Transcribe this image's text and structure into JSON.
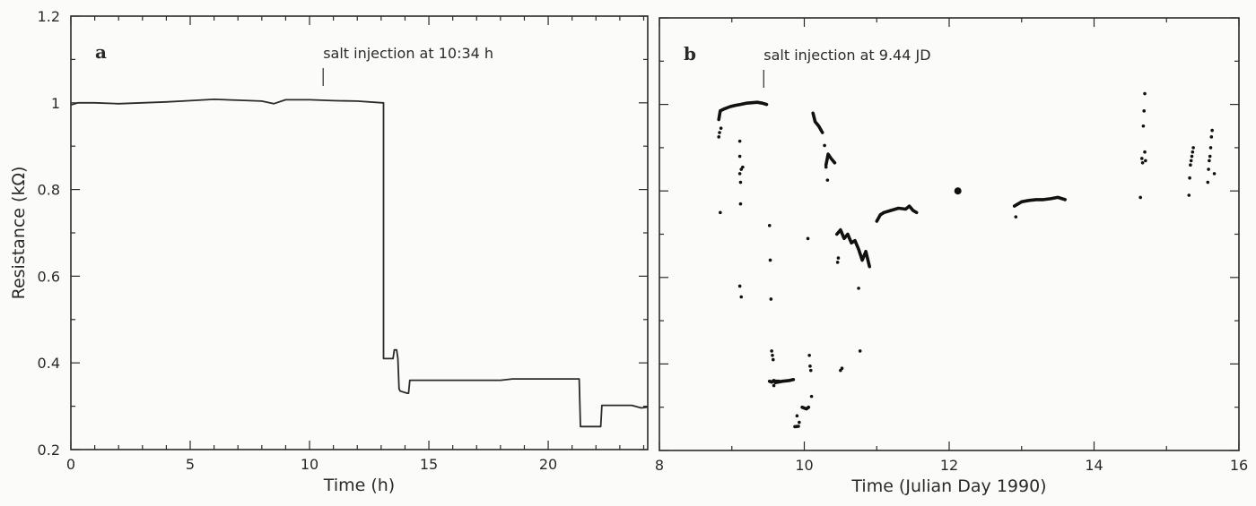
{
  "figure": {
    "ylabel": "Resistance (kΩ)",
    "line_color": "#2a2a2a",
    "background": "#fbfbf9"
  },
  "chart_data": [
    {
      "panel": "a",
      "type": "line",
      "title": "",
      "panel_label": "a",
      "annotation": {
        "text": "salt injection at 10:34 h",
        "x": 10.57
      },
      "xlabel": "Time (h)",
      "ylabel": "Resistance (kΩ)",
      "xlim": [
        0,
        24.17
      ],
      "ylim": [
        0.2,
        1.2
      ],
      "xticks": [
        0,
        5,
        10,
        15,
        20
      ],
      "xtick_labels": [
        "0",
        "5",
        "10",
        "15",
        "20"
      ],
      "x_minor_step": 1,
      "yticks": [
        0.2,
        0.4,
        0.6,
        0.8,
        1.0,
        1.2
      ],
      "ytick_labels": [
        "0.2",
        "0.4",
        "0.6",
        "0.8",
        "1",
        "1.2"
      ],
      "y_minor_step": 0.1,
      "grid": false,
      "series": [
        {
          "name": "resistance",
          "x": [
            0,
            0.3,
            1,
            2,
            3,
            4,
            5,
            6,
            7,
            8,
            8.5,
            9,
            10,
            11,
            12,
            13.05,
            13.1,
            13.1,
            13.5,
            13.55,
            13.65,
            13.7,
            13.75,
            13.8,
            14.1,
            14.15,
            14.2,
            16,
            18,
            18.5,
            20,
            21.3,
            21.35,
            22.2,
            22.25,
            23.5,
            23.9,
            24.17
          ],
          "y": [
            0.995,
            1.0,
            1.0,
            0.998,
            1.0,
            1.002,
            1.005,
            1.008,
            1.006,
            1.004,
            0.998,
            1.007,
            1.007,
            1.005,
            1.004,
            1.0,
            1.0,
            0.41,
            0.41,
            0.43,
            0.43,
            0.41,
            0.34,
            0.335,
            0.33,
            0.33,
            0.36,
            0.36,
            0.36,
            0.363,
            0.363,
            0.363,
            0.253,
            0.253,
            0.302,
            0.302,
            0.296,
            0.298
          ]
        }
      ]
    },
    {
      "panel": "b",
      "type": "scatter",
      "title": "",
      "panel_label": "b",
      "annotation": {
        "text": "salt injection at 9.44 JD",
        "x": 9.44
      },
      "xlabel": "Time (Julian Day 1990)",
      "ylabel": "",
      "xlim": [
        8,
        16
      ],
      "ylim": [
        0.2,
        1.2
      ],
      "xticks": [
        8,
        10,
        12,
        14,
        16
      ],
      "xtick_labels": [
        "8",
        "10",
        "12",
        "14",
        "16"
      ],
      "x_minor_step": 1,
      "yticks": [
        0.2,
        0.4,
        0.6,
        0.8,
        1.0,
        1.2
      ],
      "ytick_labels": [
        "",
        "",
        "",
        "",
        "",
        ""
      ],
      "y_minor_step": 0.1,
      "grid": false,
      "segments": [
        {
          "x": [
            8.82,
            8.84,
            8.9,
            8.98,
            9.05,
            9.12,
            9.2,
            9.28,
            9.35,
            9.42,
            9.48
          ],
          "y": [
            0.965,
            0.985,
            0.99,
            0.995,
            0.998,
            1.0,
            1.003,
            1.004,
            1.005,
            1.003,
            1.0
          ]
        },
        {
          "x": [
            9.52,
            9.55,
            9.58,
            9.6,
            9.62,
            9.65
          ],
          "y": [
            0.36,
            0.358,
            0.362,
            0.36,
            0.36,
            0.36
          ]
        },
        {
          "x": [
            9.6,
            9.7,
            9.8,
            9.85
          ],
          "y": [
            0.357,
            0.36,
            0.362,
            0.364
          ]
        },
        {
          "x": [
            10.12,
            10.15,
            10.2,
            10.25
          ],
          "y": [
            0.98,
            0.96,
            0.95,
            0.935
          ]
        },
        {
          "x": [
            10.3,
            10.33,
            10.37,
            10.42
          ],
          "y": [
            0.86,
            0.885,
            0.875,
            0.865
          ]
        },
        {
          "x": [
            10.45,
            10.5,
            10.55,
            10.6,
            10.65,
            10.7,
            10.75,
            10.8,
            10.85,
            10.9
          ],
          "y": [
            0.7,
            0.71,
            0.69,
            0.7,
            0.68,
            0.685,
            0.665,
            0.64,
            0.66,
            0.625
          ]
        },
        {
          "x": [
            11.0,
            11.05,
            11.1,
            11.2,
            11.3,
            11.4,
            11.45,
            11.5,
            11.55
          ],
          "y": [
            0.73,
            0.745,
            0.75,
            0.755,
            0.76,
            0.758,
            0.765,
            0.755,
            0.75
          ]
        },
        {
          "x": [
            12.9,
            13.0,
            13.1,
            13.2,
            13.3,
            13.4,
            13.5,
            13.6
          ],
          "y": [
            0.765,
            0.775,
            0.778,
            0.78,
            0.78,
            0.782,
            0.785,
            0.78
          ]
        },
        {
          "x": [
            9.97,
            10.0,
            10.03,
            10.06
          ],
          "y": [
            0.3,
            0.298,
            0.296,
            0.3
          ]
        },
        {
          "x": [
            9.87,
            9.92
          ],
          "y": [
            0.255,
            0.256
          ]
        }
      ],
      "points": [
        {
          "x": [
            8.82,
            8.83,
            8.84,
            8.85,
            9.11,
            9.11,
            9.11,
            9.13,
            9.12,
            9.11,
            9.13,
            9.12,
            9.15
          ],
          "y": [
            0.925,
            0.935,
            0.75,
            0.945,
            0.915,
            0.88,
            0.84,
            0.85,
            0.82,
            0.58,
            0.555,
            0.77,
            0.855
          ]
        },
        {
          "x": [
            9.52,
            9.53,
            9.54,
            9.55,
            9.56,
            9.57,
            9.58,
            9.9,
            9.93,
            10.07,
            10.08,
            10.05,
            10.1,
            10.09
          ],
          "y": [
            0.72,
            0.64,
            0.55,
            0.43,
            0.42,
            0.41,
            0.35,
            0.28,
            0.265,
            0.42,
            0.395,
            0.69,
            0.325,
            0.385
          ]
        },
        {
          "x": [
            10.28,
            10.3,
            10.32,
            10.46,
            10.47,
            10.5,
            10.52,
            10.75,
            10.77
          ],
          "y": [
            0.905,
            0.855,
            0.825,
            0.635,
            0.645,
            0.385,
            0.39,
            0.575,
            0.43
          ]
        },
        {
          "x": [
            12.92
          ],
          "y": [
            0.74
          ]
        },
        {
          "x": [
            14.64,
            14.66,
            14.67,
            14.68,
            14.69,
            14.7,
            14.7,
            14.71
          ],
          "y": [
            0.785,
            0.875,
            0.865,
            0.95,
            0.985,
            1.025,
            0.89,
            0.87
          ]
        },
        {
          "x": [
            15.31,
            15.32,
            15.33,
            15.34,
            15.35,
            15.36,
            15.37,
            15.57,
            15.58,
            15.59,
            15.6,
            15.61,
            15.62,
            15.63,
            15.66
          ],
          "y": [
            0.79,
            0.83,
            0.86,
            0.87,
            0.88,
            0.89,
            0.9,
            0.82,
            0.85,
            0.87,
            0.88,
            0.9,
            0.925,
            0.94,
            0.84
          ]
        }
      ],
      "large_points": [
        {
          "x": 12.12,
          "y": 0.8
        }
      ]
    }
  ]
}
